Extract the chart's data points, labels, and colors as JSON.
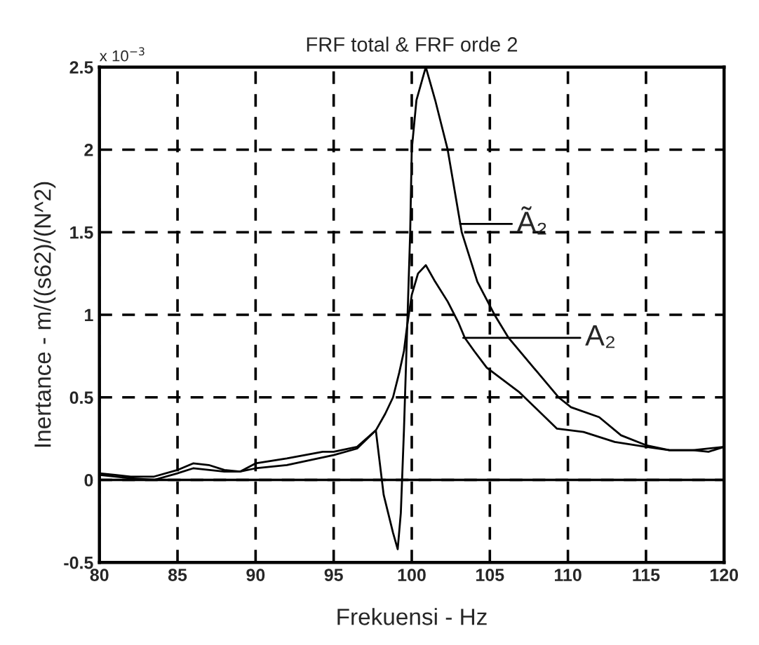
{
  "chart_data": {
    "type": "line",
    "title": "FRF total & FRF orde 2",
    "xlabel": "Frekuensi - Hz",
    "ylabel": "Inertance - m/((s62)/(N^2)",
    "xlim": [
      80,
      120
    ],
    "ylim": [
      -0.5,
      2.5
    ],
    "xticks": [
      80,
      85,
      90,
      95,
      100,
      105,
      110,
      115,
      120
    ],
    "yticks": [
      -0.5,
      0,
      0.5,
      1,
      1.5,
      2,
      2.5
    ],
    "grid": true,
    "line_style": "solid",
    "marker": "none",
    "ref_lines": [
      {
        "axis": "y",
        "value": 0,
        "color": "#000000",
        "line_style": "solid"
      }
    ],
    "annotations": [
      "x 10$^{−3}$",
      {
        "text": "Ã₂",
        "x": 103.1,
        "y": 1.55
      },
      "A₂"
    ],
    "series": [
      {
        "color": "#000000",
        "x": [
          80,
          81,
          82,
          83.5,
          85,
          86,
          87,
          88,
          89,
          90,
          92,
          94.3,
          95,
          96.5,
          97.7,
          98.2,
          98.8,
          99.1,
          99.3,
          99.5,
          99.7,
          99.9,
          100.0,
          100.3,
          100.9,
          101.5,
          102.3,
          103.2,
          104.2,
          105.3,
          106.2,
          107.8,
          109.4,
          110.2,
          112,
          113.4,
          115,
          116.5,
          118,
          119,
          120
        ],
        "values": [
          0.04,
          0.03,
          0.02,
          0.02,
          0.06,
          0.1,
          0.09,
          0.06,
          0.05,
          0.1,
          0.13,
          0.17,
          0.17,
          0.2,
          0.3,
          -0.09,
          -0.32,
          -0.42,
          -0.2,
          0.3,
          0.9,
          1.5,
          2.0,
          2.3,
          2.5,
          2.3,
          2.0,
          1.5,
          1.2,
          1.0,
          0.86,
          0.68,
          0.5,
          0.44,
          0.38,
          0.27,
          0.21,
          0.18,
          0.18,
          0.17,
          0.2
        ]
      },
      {
        "color": "#000000",
        "x": [
          80,
          82,
          83.5,
          85,
          86,
          88,
          89,
          90,
          92,
          95,
          96.5,
          97.7,
          98.3,
          98.8,
          99.2,
          99.5,
          99.7,
          100.0,
          100.4,
          100.9,
          101.5,
          102.3,
          103.0,
          103.4,
          104.0,
          104.8,
          106.9,
          109.3,
          111,
          113,
          115,
          116.5,
          118,
          120
        ],
        "values": [
          0.03,
          0.01,
          0.0,
          0.04,
          0.07,
          0.05,
          0.05,
          0.07,
          0.09,
          0.15,
          0.19,
          0.3,
          0.4,
          0.5,
          0.65,
          0.78,
          0.93,
          1.12,
          1.25,
          1.3,
          1.2,
          1.08,
          0.95,
          0.86,
          0.78,
          0.68,
          0.53,
          0.31,
          0.29,
          0.23,
          0.2,
          0.18,
          0.18,
          0.2
        ]
      }
    ]
  }
}
